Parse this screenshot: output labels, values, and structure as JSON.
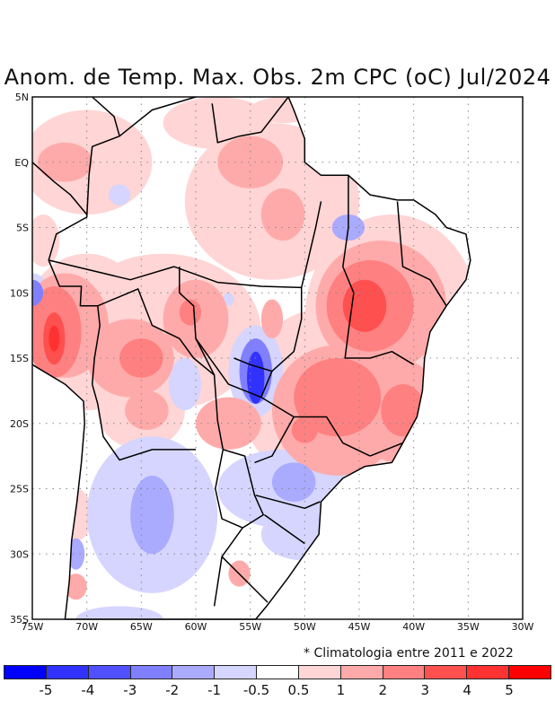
{
  "title": "Anom. de Temp. Max. Obs. 2m CPC (oC) Jul/2024",
  "note": "* Climatologia entre 2011 e 2022",
  "lat_labels": [
    "5N",
    "EQ",
    "5S",
    "10S",
    "15S",
    "20S",
    "25S",
    "30S",
    "35S"
  ],
  "lon_labels": [
    "75W",
    "70W",
    "65W",
    "60W",
    "55W",
    "50W",
    "45W",
    "40W",
    "35W",
    "30W"
  ],
  "colorbar": {
    "colors": [
      "#0000ff",
      "#3232ff",
      "#5050ff",
      "#8080ff",
      "#aaaaff",
      "#d5d5ff",
      "#ffffff",
      "#ffd5d5",
      "#ffaaaa",
      "#ff8080",
      "#ff5050",
      "#ff3232",
      "#ff0000"
    ],
    "labels": [
      "-5",
      "-4",
      "-3",
      "-2",
      "-1",
      "-0.5",
      "0.5",
      "1",
      "2",
      "3",
      "4",
      "5"
    ]
  },
  "map_extent": {
    "lon": [
      -75,
      -30
    ],
    "lat": [
      -35,
      5
    ]
  }
}
